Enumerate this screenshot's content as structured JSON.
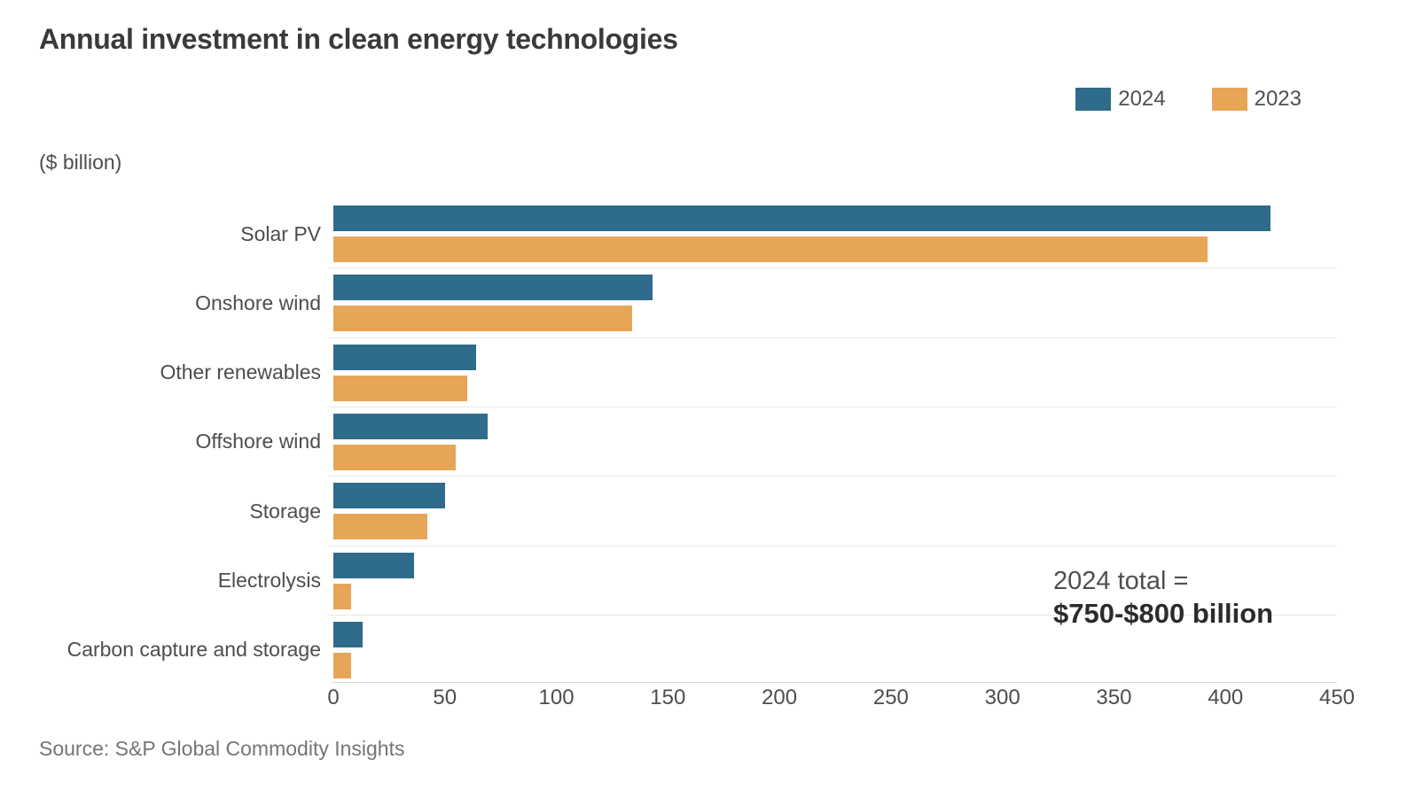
{
  "title": "Annual investment in clean energy technologies",
  "unit_label": "($ billion)",
  "annotation": {
    "line1": "2024 total =",
    "line2": "$750-$800 billion"
  },
  "source": "Source: S&P Global Commodity Insights",
  "colors": {
    "series_2024": "#2F6B8A",
    "series_2023": "#E7A558",
    "row_separator": "#E8E8E8",
    "axis_line": "#D9D9D9",
    "title_text": "#3A3A3A",
    "label_text": "#4D4D4D"
  },
  "chart_data": {
    "type": "bar",
    "orientation": "horizontal",
    "title": "Annual investment in clean energy technologies",
    "xlabel": "($ billion)",
    "ylabel": "",
    "xlim": [
      0,
      450
    ],
    "xticks": [
      0,
      50,
      100,
      150,
      200,
      250,
      300,
      350,
      400,
      450
    ],
    "grid": "row-separators",
    "legend_position": "top-right",
    "categories": [
      "Solar PV",
      "Onshore wind",
      "Other renewables",
      "Offshore wind",
      "Storage",
      "Electrolysis",
      "Carbon capture and storage"
    ],
    "series": [
      {
        "name": "2024",
        "color": "#2F6B8A",
        "values": [
          420,
          143,
          64,
          69,
          50,
          36,
          13
        ]
      },
      {
        "name": "2023",
        "color": "#E7A558",
        "values": [
          392,
          134,
          60,
          55,
          42,
          8,
          8
        ]
      }
    ],
    "annotation": "2024 total = $750-$800 billion"
  }
}
